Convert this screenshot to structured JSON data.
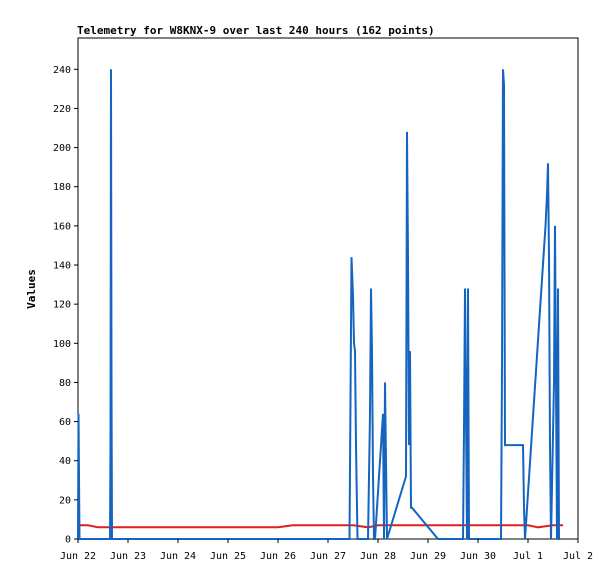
{
  "chart_data": {
    "type": "line",
    "title": "Telemetry for W8KNX-9 over last 240 hours (162 points)",
    "xlabel": "",
    "ylabel": "Values",
    "xlim": [
      0,
      10
    ],
    "ylim": [
      0,
      256
    ],
    "y_ticks": [
      0,
      20,
      40,
      60,
      80,
      100,
      120,
      140,
      160,
      180,
      200,
      220,
      240
    ],
    "x_ticks": [
      {
        "label": "Jun 22",
        "x": 0
      },
      {
        "label": "Jun 23",
        "x": 1
      },
      {
        "label": "Jun 24",
        "x": 2
      },
      {
        "label": "Jun 25",
        "x": 3
      },
      {
        "label": "Jun 26",
        "x": 4
      },
      {
        "label": "Jun 27",
        "x": 5
      },
      {
        "label": "Jun 28",
        "x": 6
      },
      {
        "label": "Jun 29",
        "x": 7
      },
      {
        "label": "Jun 30",
        "x": 8
      },
      {
        "label": "Jul 1",
        "x": 9
      },
      {
        "label": "Jul 2",
        "x": 10
      }
    ],
    "grid": false,
    "legend": "none",
    "series": [
      {
        "color": "#1565c0",
        "x": [
          0.0,
          0.01,
          0.02,
          0.03,
          0.64,
          0.65,
          0.66,
          0.67,
          0.68,
          0.7,
          5.43,
          5.45,
          5.47,
          5.5,
          5.52,
          5.54,
          5.56,
          5.58,
          5.59,
          5.8,
          5.84,
          5.86,
          5.88,
          5.9,
          5.92,
          5.94,
          6.1,
          6.12,
          6.14,
          6.16,
          6.18,
          6.56,
          6.58,
          6.6,
          6.62,
          6.64,
          6.66,
          6.68,
          7.2,
          7.7,
          7.72,
          7.74,
          7.76,
          7.78,
          7.8,
          7.82,
          8.46,
          8.48,
          8.5,
          8.52,
          8.54,
          8.56,
          8.9,
          8.92,
          8.94,
          9.35,
          9.38,
          9.4,
          9.42,
          9.44,
          9.46,
          9.52,
          9.54,
          9.56,
          9.58,
          9.6,
          9.62,
          9.64
        ],
        "y": [
          0,
          64,
          32,
          0,
          0,
          48,
          240,
          80,
          0,
          0,
          0,
          72,
          144,
          124,
          100,
          96,
          48,
          16,
          0,
          0,
          64,
          128,
          96,
          32,
          0,
          0,
          64,
          0,
          80,
          40,
          0,
          32,
          208,
          144,
          48,
          96,
          16,
          16,
          0,
          0,
          56,
          128,
          64,
          0,
          128,
          0,
          0,
          88,
          240,
          232,
          48,
          48,
          48,
          16,
          0,
          160,
          176,
          192,
          144,
          48,
          0,
          80,
          160,
          80,
          0,
          128,
          0,
          0
        ]
      },
      {
        "color": "#e02020",
        "x": [
          0.0,
          0.2,
          0.4,
          0.6,
          0.8,
          1.0,
          1.5,
          2.0,
          2.5,
          3.0,
          3.5,
          4.0,
          4.3,
          5.0,
          5.5,
          5.8,
          6.0,
          6.5,
          7.0,
          7.5,
          8.0,
          8.5,
          9.0,
          9.2,
          9.5,
          9.7
        ],
        "y": [
          7,
          7,
          6,
          6,
          6,
          6,
          6,
          6,
          6,
          6,
          6,
          6,
          7,
          7,
          7,
          6,
          7,
          7,
          7,
          7,
          7,
          7,
          7,
          6,
          7,
          7
        ]
      }
    ]
  }
}
